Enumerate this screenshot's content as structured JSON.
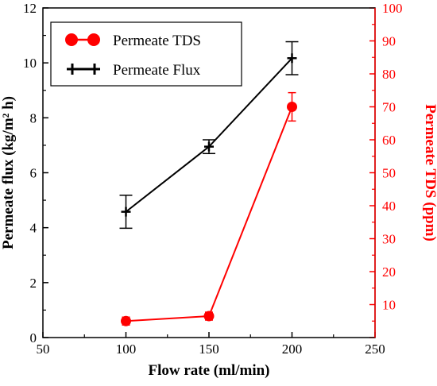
{
  "chart_data": {
    "type": "line",
    "xlabel": "Flow rate (ml/min)",
    "ylabel_left": "Permeate flux (kg/m² h)",
    "ylabel_right": "Permeate TDS (ppm)",
    "xlim": [
      50,
      250
    ],
    "ylim_left": [
      0,
      12
    ],
    "ylim_right": [
      0,
      100
    ],
    "x_ticks": [
      50,
      100,
      150,
      200,
      250
    ],
    "y_left_ticks": [
      0,
      2,
      4,
      6,
      8,
      10,
      12
    ],
    "y_right_ticks": [
      0,
      10,
      20,
      30,
      40,
      50,
      60,
      70,
      80,
      90,
      100
    ],
    "y_right_tick_labels": [
      "",
      "10",
      "20",
      "30",
      "40",
      "50",
      "60",
      "70",
      "80",
      "90",
      "100"
    ],
    "legend_position": "top-left",
    "series": [
      {
        "name": "Permeate TDS",
        "axis": "right",
        "color": "#ff0000",
        "marker": "circle",
        "x": [
          100,
          150,
          200
        ],
        "y": [
          5,
          6.5,
          70
        ],
        "error": [
          1.2,
          1.2,
          4.3
        ]
      },
      {
        "name": "Permeate Flux",
        "axis": "left",
        "color": "#000000",
        "marker": "plus",
        "x": [
          100,
          150,
          200
        ],
        "y": [
          4.58,
          6.95,
          10.17
        ],
        "error": [
          0.6,
          0.25,
          0.6
        ]
      }
    ]
  }
}
